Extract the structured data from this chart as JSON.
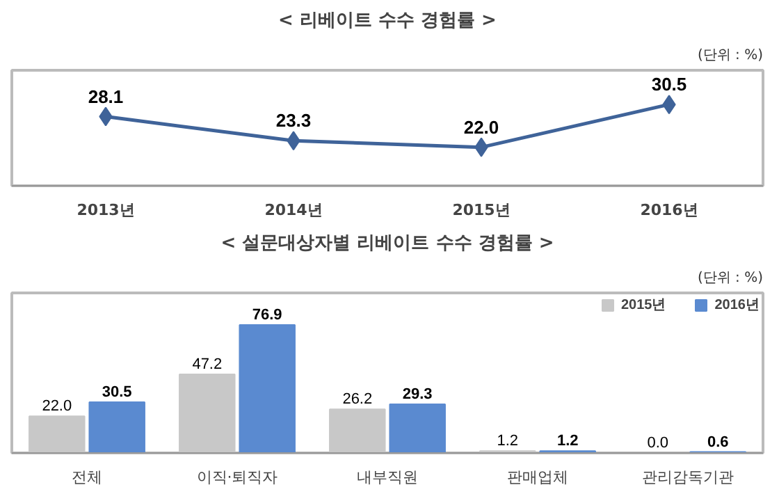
{
  "chart_data": [
    {
      "type": "line",
      "title": "< 리베이트 수수 경험률 >",
      "annotations": [
        "(단위 : %)"
      ],
      "categories": [
        "2013년",
        "2014년",
        "2015년",
        "2016년"
      ],
      "series": [
        {
          "color": "#3f6399",
          "values": [
            28.1,
            23.3,
            22.0,
            30.5
          ],
          "value_labels": [
            "28.1",
            "23.3",
            "22.0",
            "30.5"
          ]
        }
      ],
      "marker": "diamond",
      "grid": false,
      "legend": false
    },
    {
      "type": "bar",
      "title": "< 설문대상자별 리베이트 수수 경험률 >",
      "annotations": [
        "(단위 : %)"
      ],
      "categories": [
        "전체",
        "이직·퇴직자",
        "내부직원",
        "판매업체",
        "관리감독기관"
      ],
      "series": [
        {
          "name": "2015년",
          "color": "#c8c8c8",
          "values": [
            22.0,
            47.2,
            26.2,
            1.2,
            0.0
          ],
          "value_labels": [
            "22.0",
            "47.2",
            "26.2",
            "1.2",
            "0.0"
          ]
        },
        {
          "name": "2016년",
          "color": "#5a8ad0",
          "values": [
            30.5,
            76.9,
            29.3,
            1.2,
            0.6
          ],
          "value_labels": [
            "30.5",
            "76.9",
            "29.3",
            "1.2",
            "0.6"
          ]
        }
      ],
      "grid": false,
      "legend": "top right"
    }
  ]
}
